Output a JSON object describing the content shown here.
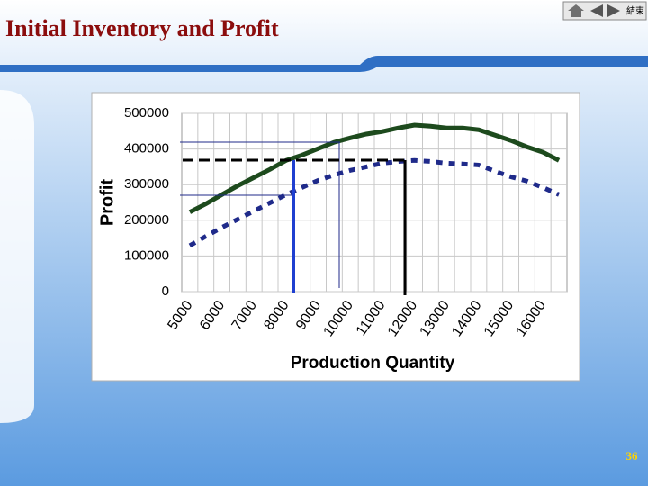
{
  "slide_title": "Initial Inventory and Profit",
  "nav_label": "結束",
  "page_number": "36",
  "chart_data": {
    "type": "line",
    "x_label": "Production Quantity",
    "y_label": "Profit",
    "x": [
      5000,
      5500,
      6000,
      6500,
      7000,
      7500,
      8000,
      8500,
      9000,
      9500,
      10000,
      10500,
      11000,
      11500,
      12000,
      12500,
      13000,
      13500,
      14000,
      14500,
      15000,
      15500,
      16000,
      16500
    ],
    "series": [
      {
        "color": "#1d4a1d",
        "style": "solid",
        "values": [
          223000,
          246000,
          272000,
          297000,
          320000,
          343000,
          368000,
          383000,
          401000,
          419000,
          431000,
          442000,
          449000,
          459000,
          467000,
          464000,
          459000,
          459000,
          454000,
          439000,
          424000,
          406000,
          391000,
          368000
        ]
      },
      {
        "color": "#1f2a8a",
        "style": "dotted",
        "values": [
          129000,
          155000,
          180000,
          203000,
          226000,
          249000,
          272000,
          292000,
          312000,
          327000,
          340000,
          350000,
          360000,
          365000,
          368000,
          365000,
          360000,
          358000,
          355000,
          338000,
          322000,
          310000,
          292000,
          272000
        ]
      }
    ],
    "xlim": [
      4750,
      16750
    ],
    "xticks": [
      5000,
      6000,
      7000,
      8000,
      9000,
      10000,
      11000,
      12000,
      13000,
      14000,
      15000,
      16000
    ],
    "ylim": [
      0,
      500000
    ],
    "yticks": [
      0,
      100000,
      200000,
      300000,
      400000,
      500000
    ],
    "grid": true
  }
}
